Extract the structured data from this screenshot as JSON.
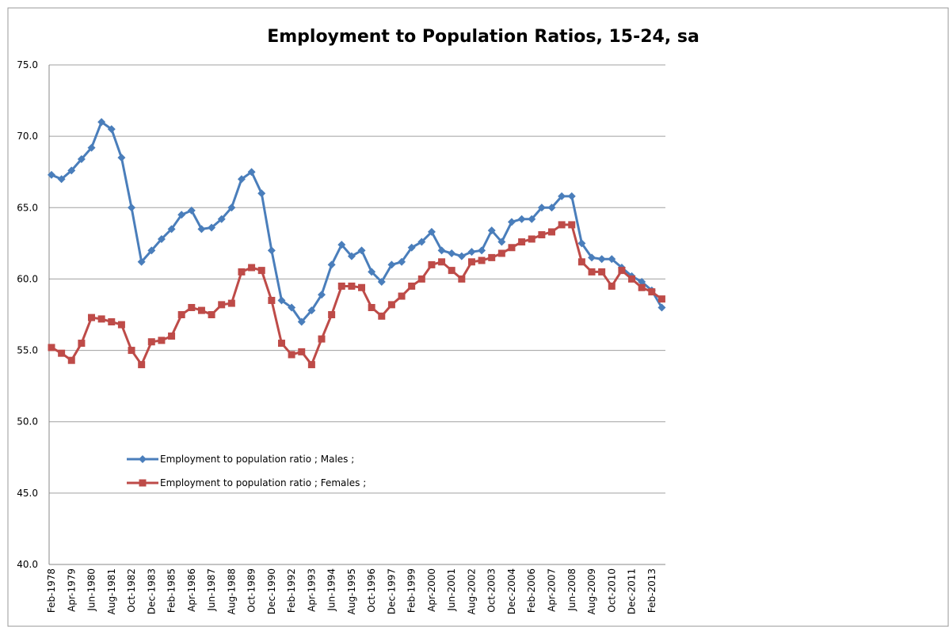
{
  "chart_data": {
    "type": "line",
    "title": "Employment to Population Ratios, 15-24, sa",
    "categories": [
      "Feb-1978",
      null,
      "Apr-1979",
      null,
      "Jun-1980",
      null,
      "Aug-1981",
      null,
      "Oct-1982",
      null,
      "Dec-1983",
      null,
      "Feb-1985",
      null,
      "Apr-1986",
      null,
      "Jun-1987",
      null,
      "Aug-1988",
      null,
      "Oct-1989",
      null,
      "Dec-1990",
      null,
      "Feb-1992",
      null,
      "Apr-1993",
      null,
      "Jun-1994",
      null,
      "Aug-1995",
      null,
      "Oct-1996",
      null,
      "Dec-1997",
      null,
      "Feb-1999",
      null,
      "Apr-2000",
      null,
      "Jun-2001",
      null,
      "Aug-2002",
      null,
      "Oct-2003",
      null,
      "Dec-2004",
      null,
      "Feb-2006",
      null,
      "Apr-2007",
      null,
      "Jun-2008",
      null,
      "Aug-2009",
      null,
      "Oct-2010",
      null,
      "Dec-2011",
      null,
      "Feb-2013",
      null
    ],
    "series": [
      {
        "name": "Employment to population ratio ;  Males ;",
        "color": "#4a7ebb",
        "marker": "diamond",
        "values": [
          67.3,
          67.0,
          67.6,
          68.4,
          69.2,
          71.0,
          70.5,
          68.5,
          65.0,
          61.2,
          62.0,
          62.8,
          63.5,
          64.5,
          64.8,
          63.5,
          63.6,
          64.2,
          65.0,
          67.0,
          67.5,
          66.0,
          62.0,
          58.5,
          58.0,
          57.0,
          57.8,
          58.9,
          61.0,
          62.4,
          61.6,
          62.0,
          60.5,
          59.8,
          61.0,
          61.2,
          62.2,
          62.6,
          63.3,
          62.0,
          61.8,
          61.6,
          61.9,
          62.0,
          63.4,
          62.6,
          64.0,
          64.2,
          64.2,
          65.0,
          65.0,
          65.8,
          65.8,
          62.5,
          61.5,
          61.4,
          61.4,
          60.8,
          60.2,
          59.8,
          59.2,
          58.0
        ]
      },
      {
        "name": "Employment to population ratio ;  Females ;",
        "color": "#be4b48",
        "marker": "square",
        "values": [
          55.2,
          54.8,
          54.3,
          55.5,
          57.3,
          57.2,
          57.0,
          56.8,
          55.0,
          54.0,
          55.6,
          55.7,
          56.0,
          57.5,
          58.0,
          57.8,
          57.5,
          58.2,
          58.3,
          60.5,
          60.8,
          60.6,
          58.5,
          55.5,
          54.7,
          54.9,
          54.0,
          55.8,
          57.5,
          59.5,
          59.5,
          59.4,
          58.0,
          57.4,
          58.2,
          58.8,
          59.5,
          60.0,
          61.0,
          61.2,
          60.6,
          60.0,
          61.2,
          61.3,
          61.5,
          61.8,
          62.2,
          62.6,
          62.8,
          63.1,
          63.3,
          63.8,
          63.8,
          61.2,
          60.5,
          60.5,
          59.5,
          60.6,
          60.0,
          59.4,
          59.1,
          58.6
        ]
      }
    ],
    "ylim": [
      40,
      75
    ],
    "yticks": [
      {
        "value": 40,
        "label": "40.0"
      },
      {
        "value": 45,
        "label": "45.0"
      },
      {
        "value": 50,
        "label": "50.0"
      },
      {
        "value": 55,
        "label": "55.0"
      },
      {
        "value": 60,
        "label": "60.0"
      },
      {
        "value": 65,
        "label": "65.0"
      },
      {
        "value": 70,
        "label": "70.0"
      },
      {
        "value": 75,
        "label": "75.0"
      }
    ],
    "grid": true,
    "legend": "inside-lower-left"
  }
}
